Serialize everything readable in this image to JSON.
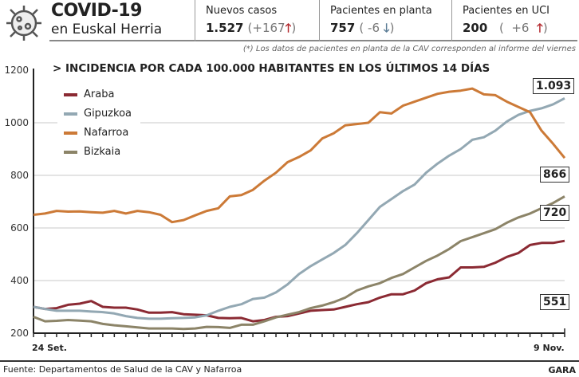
{
  "header": {
    "logo_icon": "virus-icon",
    "title": "COVID-19",
    "subtitle": "en Euskal Herria",
    "stats": [
      {
        "label": "Nuevos casos",
        "value": "1.527",
        "delta": "+167",
        "trend": "up"
      },
      {
        "label": "Pacientes en planta",
        "value": "757",
        "delta": "-6",
        "trend": "down"
      },
      {
        "label": "Pacientes en UCI",
        "value": "200",
        "delta": "+6",
        "trend": "up"
      }
    ],
    "note": "(*) Los datos de pacientes en planta de la CAV corresponden al informe del viernes"
  },
  "chart_data": {
    "type": "line",
    "title": "> INCIDENCIA POR CADA 100.000 HABITANTES EN LOS ÚLTIMOS 14 DÍAS",
    "xlabel": "",
    "ylabel": "",
    "x_start_label": "24 Set.",
    "x_end_label": "9 Nov.",
    "x_days": 47,
    "ylim": [
      200,
      1200
    ],
    "yticks": [
      200,
      400,
      600,
      800,
      1000,
      1200
    ],
    "grid": true,
    "legend": "top-left",
    "series": [
      {
        "name": "Araba",
        "color": "#8b2a33",
        "end_label": "551",
        "values": [
          300,
          292,
          295,
          308,
          312,
          322,
          300,
          297,
          297,
          290,
          278,
          278,
          280,
          272,
          270,
          268,
          258,
          257,
          258,
          245,
          250,
          262,
          265,
          275,
          285,
          288,
          290,
          300,
          310,
          318,
          335,
          348,
          348,
          362,
          390,
          405,
          412,
          450,
          450,
          452,
          468,
          490,
          505,
          535,
          543,
          543,
          551
        ]
      },
      {
        "name": "Gipuzkoa",
        "color": "#93a8b3",
        "end_label": "1.093",
        "values": [
          300,
          292,
          285,
          285,
          285,
          282,
          280,
          275,
          265,
          258,
          255,
          255,
          257,
          258,
          260,
          268,
          285,
          300,
          310,
          330,
          335,
          355,
          385,
          425,
          455,
          480,
          505,
          535,
          580,
          630,
          680,
          710,
          740,
          765,
          810,
          845,
          875,
          900,
          935,
          945,
          970,
          1005,
          1030,
          1045,
          1055,
          1070,
          1093
        ]
      },
      {
        "name": "Nafarroa",
        "color": "#cc7a37",
        "end_label": "866",
        "values": [
          650,
          655,
          665,
          662,
          663,
          660,
          658,
          665,
          655,
          665,
          660,
          650,
          622,
          630,
          648,
          665,
          675,
          720,
          725,
          745,
          780,
          810,
          850,
          870,
          895,
          940,
          960,
          990,
          995,
          1000,
          1040,
          1035,
          1065,
          1080,
          1095,
          1110,
          1118,
          1122,
          1130,
          1108,
          1105,
          1080,
          1060,
          1040,
          970,
          920,
          866
        ]
      },
      {
        "name": "Bizkaia",
        "color": "#8c8468",
        "end_label": "720",
        "values": [
          262,
          245,
          247,
          250,
          248,
          245,
          235,
          230,
          226,
          222,
          218,
          218,
          218,
          216,
          218,
          224,
          223,
          220,
          232,
          232,
          245,
          260,
          270,
          280,
          295,
          305,
          318,
          335,
          362,
          378,
          390,
          410,
          425,
          450,
          475,
          495,
          520,
          550,
          565,
          580,
          595,
          620,
          640,
          655,
          675,
          695,
          720
        ]
      }
    ]
  },
  "footer": {
    "source": "Fuente: Departamentos de Salud de la CAV y Nafarroa",
    "brand": "GARA"
  }
}
